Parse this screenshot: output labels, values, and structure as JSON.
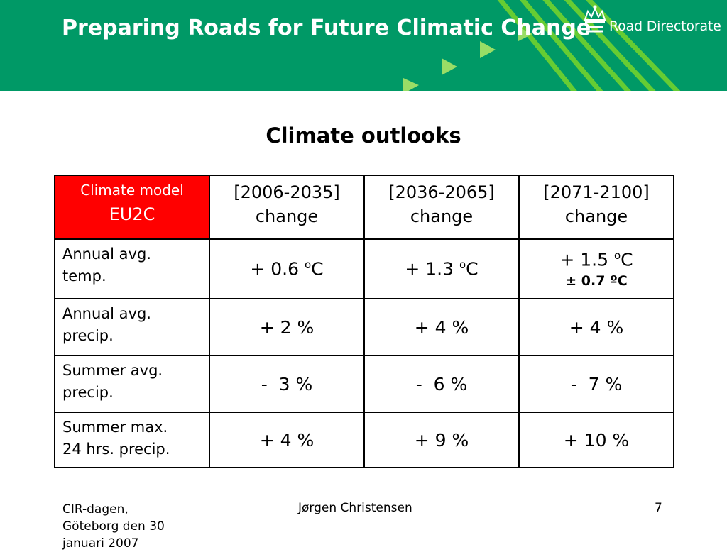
{
  "header": {
    "title": "Preparing Roads for Future Climatic Change",
    "logo_text": "Road Directorate",
    "colors": {
      "banner": "#009966",
      "stripes": "#66cc33",
      "arrows": "#99dd66"
    }
  },
  "subtitle": "Climate outlooks",
  "table": {
    "model_label": "Climate model",
    "model_name": "EU2C",
    "header_color": "#ff0000",
    "periods": [
      {
        "range": "[2006-2035]",
        "label": "change"
      },
      {
        "range": "[2036-2065]",
        "label": "change"
      },
      {
        "range": "[2071-2100]",
        "label": "change"
      }
    ],
    "rows": [
      {
        "label_line1": "Annual avg.",
        "label_line2": "temp.",
        "values": [
          {
            "prefix": "+ 0.6 ",
            "sup": "o",
            "suffix": "C"
          },
          {
            "prefix": "+ 1.3 ",
            "sup": "o",
            "suffix": "C"
          },
          {
            "prefix": "+ 1.5 ",
            "sup": "o",
            "suffix": "C",
            "note": "± 0.7 ºC"
          }
        ]
      },
      {
        "label_line1": "Annual avg.",
        "label_line2": "precip.",
        "values": [
          {
            "prefix": "+ 2 %"
          },
          {
            "prefix": "+ 4 %"
          },
          {
            "prefix": "+ 4 %"
          }
        ]
      },
      {
        "label_line1": "Summer avg.",
        "label_line2": "precip.",
        "values": [
          {
            "prefix": "-  3 %"
          },
          {
            "prefix": "-  6 %"
          },
          {
            "prefix": "-  7 %"
          }
        ]
      },
      {
        "label_line1": "Summer max.",
        "label_line2": "24 hrs. precip.",
        "values": [
          {
            "prefix": "+ 4 %"
          },
          {
            "prefix": "+ 9 %"
          },
          {
            "prefix": "+ 10 %"
          }
        ]
      }
    ]
  },
  "footer": {
    "left_line1": "CIR-dagen,",
    "left_line2": "Göteborg den 30",
    "left_line3": "januari 2007",
    "center": "Jørgen Christensen",
    "page_number": "7"
  }
}
